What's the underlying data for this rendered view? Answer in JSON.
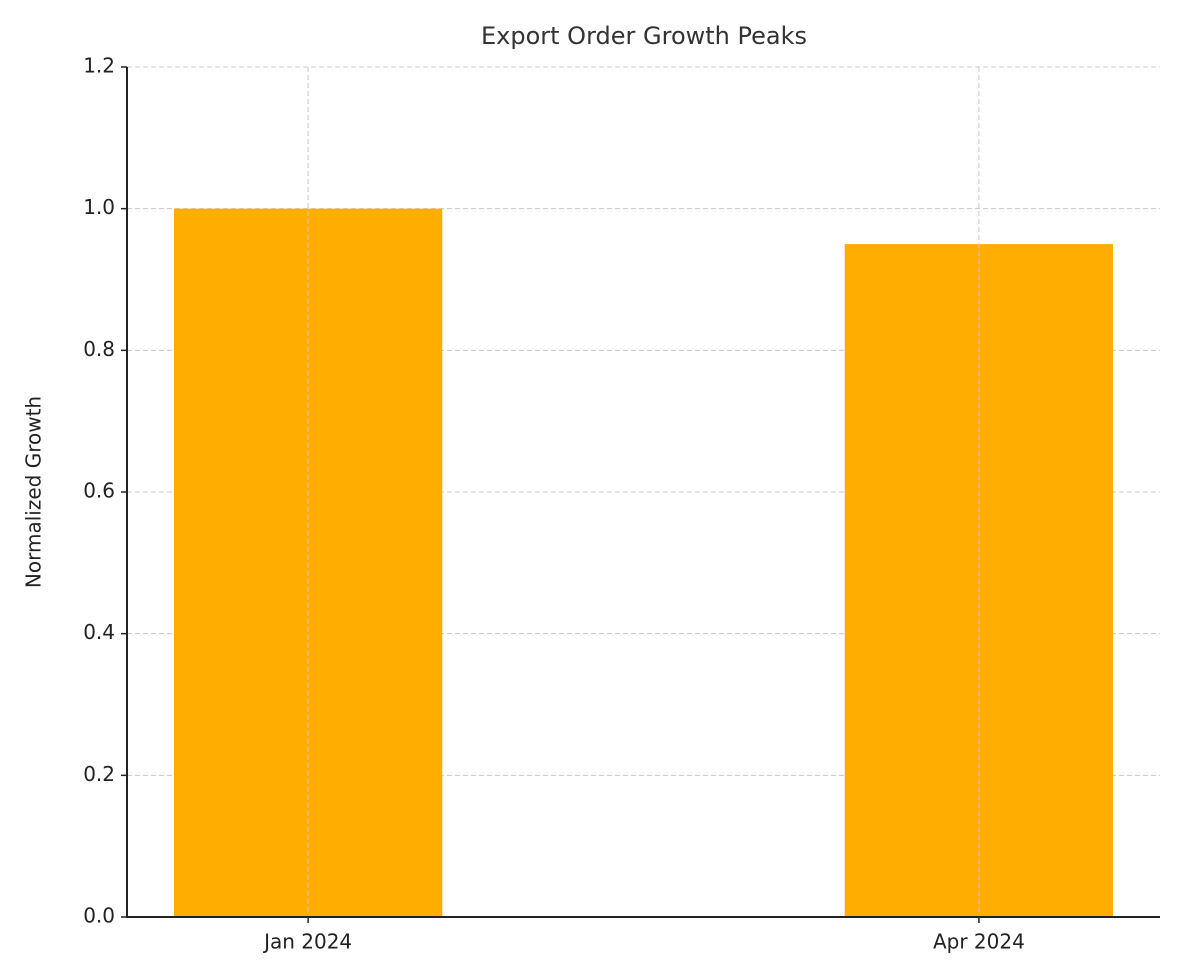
{
  "chart_data": {
    "type": "bar",
    "title": "Export Order Growth Peaks",
    "y_label": "Normalized Growth",
    "categories": [
      "Jan 2024",
      "Apr 2024"
    ],
    "values": [
      1.0,
      0.95
    ],
    "color": "#ffae00",
    "ylim": [
      0,
      1.2
    ],
    "yticks": [
      {
        "value": 0,
        "label": "0.0"
      },
      0.2,
      0.4,
      0.6,
      0.8,
      {
        "value": 1,
        "label": "1.0"
      },
      1.2
    ],
    "grid": true
  }
}
